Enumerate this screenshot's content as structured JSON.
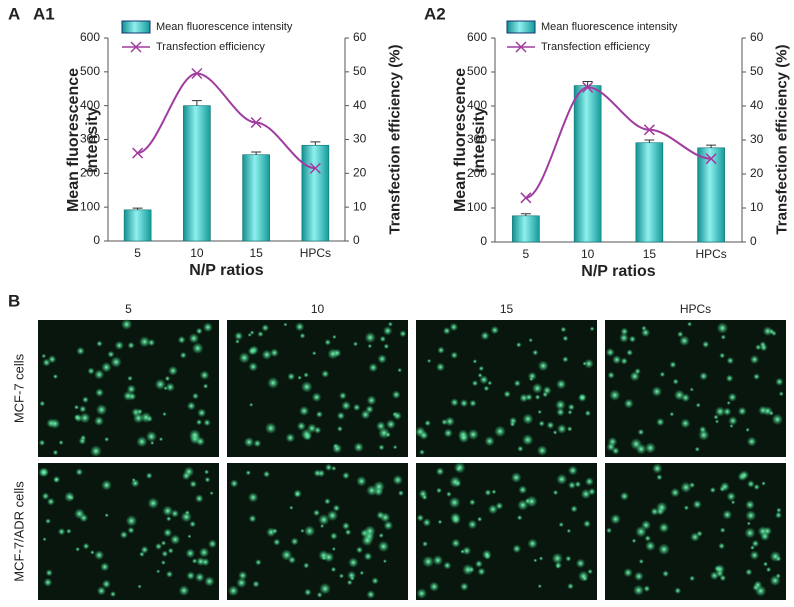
{
  "panel_labels": {
    "a": "A",
    "a1": "A1",
    "a2": "A2",
    "b": "B"
  },
  "chart_data": [
    {
      "type": "bar",
      "categories": [
        "5",
        "10",
        "15",
        "HPCs"
      ],
      "xlabel": "N/P ratios",
      "ylabel": "Mean fluorescence intensity",
      "y2label": "Transfection efficiency (%)",
      "ylim": [
        0,
        600
      ],
      "yticks": [
        0,
        100,
        200,
        300,
        400,
        500,
        600
      ],
      "y2lim": [
        0,
        60
      ],
      "y2ticks": [
        0,
        10,
        20,
        30,
        40,
        50,
        60
      ],
      "series": [
        {
          "name": "Mean fluorescence intensity",
          "color": "#2fbfbf",
          "values": [
            92,
            400,
            255,
            283
          ],
          "errors": [
            5,
            15,
            8,
            10
          ]
        },
        {
          "name": "Transfection efficiency",
          "color": "#a03ca0",
          "type": "line",
          "axis": "y2",
          "values": [
            26,
            49.5,
            35,
            21.5
          ]
        }
      ]
    },
    {
      "type": "bar",
      "categories": [
        "5",
        "10",
        "15",
        "HPCs"
      ],
      "xlabel": "N/P ratios",
      "ylabel": "Mean fluorescence intensity",
      "y2label": "Transfection efficiency (%)",
      "ylim": [
        0,
        600
      ],
      "yticks": [
        0,
        100,
        200,
        300,
        400,
        500,
        600
      ],
      "y2lim": [
        0,
        60
      ],
      "y2ticks": [
        0,
        10,
        20,
        30,
        40,
        50,
        60
      ],
      "series": [
        {
          "name": "Mean fluorescence intensity",
          "color": "#2fbfbf",
          "values": [
            77,
            460,
            292,
            277
          ],
          "errors": [
            6,
            12,
            8,
            8
          ]
        },
        {
          "name": "Transfection efficiency",
          "color": "#a03ca0",
          "type": "line",
          "axis": "y2",
          "values": [
            13,
            45.5,
            33,
            24.5
          ]
        }
      ]
    }
  ],
  "images": {
    "columns": [
      "5",
      "10",
      "15",
      "HPCs"
    ],
    "rows": [
      "MCF-7 cells",
      "MCF-7/ADR cells"
    ]
  }
}
